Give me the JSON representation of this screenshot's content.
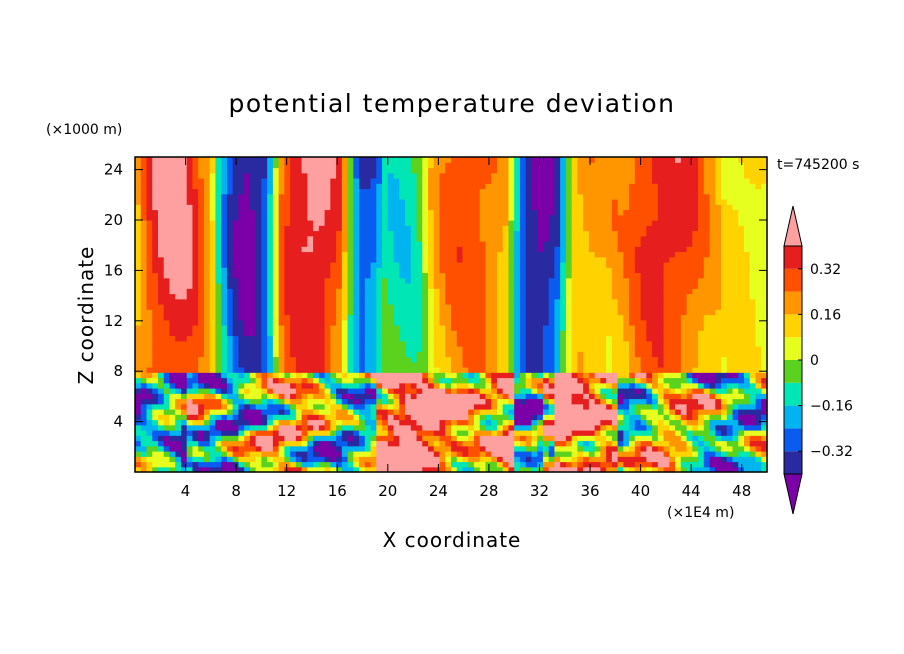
{
  "chart_data": {
    "type": "heatmap",
    "title": "potential temperature deviation",
    "xlabel": "X coordinate",
    "ylabel": "Z coordinate",
    "x_unit": "(×1E4 m)",
    "y_unit": "(×1000 m)",
    "time_label": "t=745200 s",
    "xlim": [
      0,
      50
    ],
    "ylim": [
      0,
      25
    ],
    "x_ticks": [
      4,
      8,
      12,
      16,
      20,
      24,
      28,
      32,
      36,
      40,
      44,
      48
    ],
    "y_ticks": [
      4,
      8,
      12,
      16,
      20,
      24
    ],
    "colorbar": {
      "levels": [
        -0.4,
        -0.32,
        -0.24,
        -0.16,
        -0.08,
        0,
        0.08,
        0.16,
        0.24,
        0.32,
        0.4
      ],
      "tick_labels": [
        "0.32",
        "0.16",
        "0",
        "−0.16",
        "−0.32"
      ],
      "tick_values": [
        0.32,
        0.16,
        0,
        -0.16,
        -0.32
      ],
      "colors": [
        "#7b00a8",
        "#2a2aa0",
        "#0a5cf0",
        "#00b4f0",
        "#00e6b4",
        "#5ad21e",
        "#e6ff1e",
        "#ffd200",
        "#ff9600",
        "#ff5000",
        "#e61e1e",
        "#ffa0a0"
      ],
      "extend": "both"
    },
    "upper_layer_columns": [
      {
        "x0": 0,
        "x1": 6,
        "peak": 0.45
      },
      {
        "x0": 7,
        "x1": 11,
        "peak": -0.45
      },
      {
        "x0": 11,
        "x1": 17,
        "peak": 0.45
      },
      {
        "x0": 17,
        "x1": 19,
        "peak": -0.33
      },
      {
        "x0": 19,
        "x1": 23,
        "peak": -0.13
      },
      {
        "x0": 23,
        "x1": 30,
        "peak": 0.3
      },
      {
        "x0": 30,
        "x1": 34,
        "peak": -0.45
      },
      {
        "x0": 34,
        "x1": 38,
        "peak": 0.2
      },
      {
        "x0": 38,
        "x1": 46,
        "peak": 0.38
      },
      {
        "x0": 46,
        "x1": 50,
        "peak": 0.12
      }
    ]
  }
}
